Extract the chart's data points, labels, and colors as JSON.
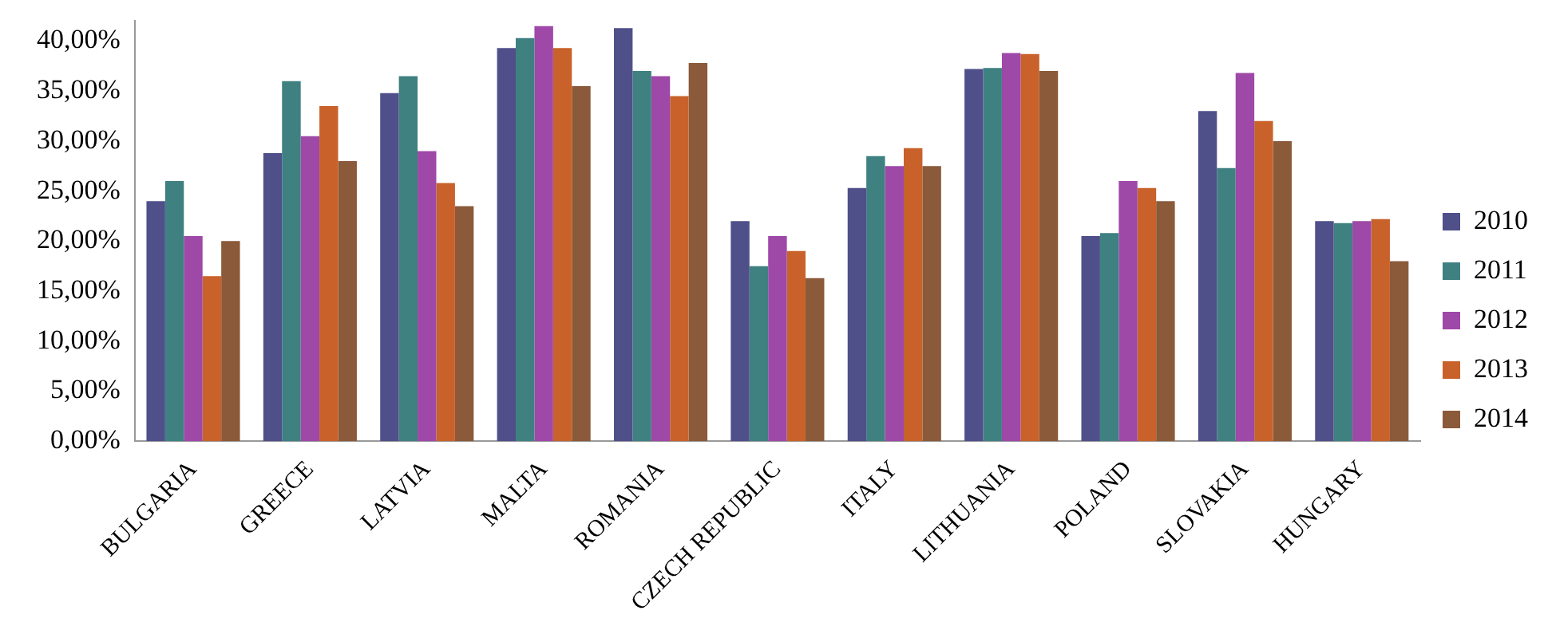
{
  "chart_data": {
    "type": "bar",
    "categories": [
      "BULGARIA",
      "GREECE",
      "LATVIA",
      "MALTA",
      "ROMANIA",
      "CZECH REPUBLIC",
      "ITALY",
      "LITHUANIA",
      "POLAND",
      "SLOVAKIA",
      "HUNGARY"
    ],
    "series": [
      {
        "name": "2010",
        "color": "#4f4f8a",
        "values": [
          24,
          28.8,
          34.8,
          39.3,
          41.3,
          22,
          25.3,
          37.2,
          20.5,
          33,
          22
        ]
      },
      {
        "name": "2011",
        "color": "#3f8080",
        "values": [
          26,
          36,
          36.5,
          40.3,
          37,
          17.5,
          28.5,
          37.3,
          20.8,
          27.3,
          21.8
        ]
      },
      {
        "name": "2012",
        "color": "#9e48a8",
        "values": [
          20.5,
          30.5,
          29,
          41.5,
          36.5,
          20.5,
          27.5,
          38.8,
          26,
          36.8,
          22
        ]
      },
      {
        "name": "2013",
        "color": "#c8622a",
        "values": [
          16.5,
          33.5,
          25.8,
          39.3,
          34.5,
          19,
          29.3,
          38.7,
          25.3,
          32,
          22.2
        ]
      },
      {
        "name": "2014",
        "color": "#8a5a3a",
        "values": [
          20,
          28,
          23.5,
          35.5,
          37.8,
          16.3,
          27.5,
          37,
          24,
          30,
          18
        ]
      }
    ],
    "ylim": [
      0,
      42
    ],
    "yticks": [
      {
        "value": 0,
        "label": "0,00%"
      },
      {
        "value": 5,
        "label": "5,00%"
      },
      {
        "value": 10,
        "label": "10,00%"
      },
      {
        "value": 15,
        "label": "15,00%"
      },
      {
        "value": 20,
        "label": "20,00%"
      },
      {
        "value": 25,
        "label": "25,00%"
      },
      {
        "value": 30,
        "label": "30,00%"
      },
      {
        "value": 35,
        "label": "35,00%"
      },
      {
        "value": 40,
        "label": "40,00%"
      }
    ],
    "grid": false,
    "legend": "right"
  }
}
